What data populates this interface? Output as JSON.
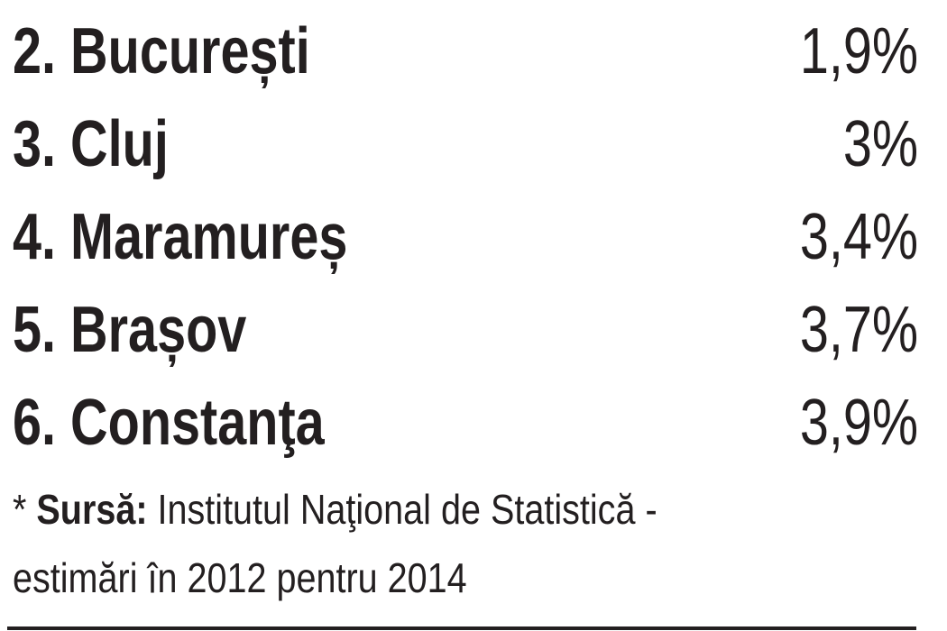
{
  "rows": [
    {
      "label": "2. București",
      "value": "1,9%"
    },
    {
      "label": "3. Cluj",
      "value": "3%"
    },
    {
      "label": "4. Maramureș",
      "value": "3,4%"
    },
    {
      "label": "5. Brașov",
      "value": "3,7%"
    },
    {
      "label": "6. Constanţa",
      "value": "3,9%"
    }
  ],
  "footnote": {
    "prefix": "* ",
    "source_label": "Sursă:",
    "line1": " Institutul Naţional de Statistică -",
    "line2": "estimări în 2012 pentru 2014"
  }
}
